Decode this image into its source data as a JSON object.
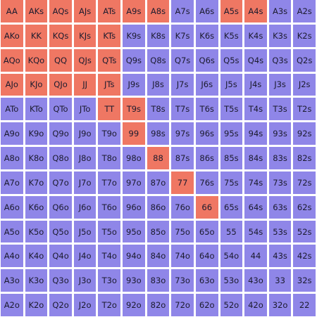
{
  "colors": {
    "unselected": "#8f86e8",
    "selected": "#ef7763",
    "text": "#1b1b2e"
  },
  "ranks": [
    "A",
    "K",
    "Q",
    "J",
    "T",
    "9",
    "8",
    "7",
    "6",
    "5",
    "4",
    "3",
    "2"
  ],
  "grid": [
    [
      "AA",
      "AKs",
      "AQs",
      "AJs",
      "ATs",
      "A9s",
      "A8s",
      "A7s",
      "A6s",
      "A5s",
      "A4s",
      "A3s",
      "A2s"
    ],
    [
      "AKo",
      "KK",
      "KQs",
      "KJs",
      "KTs",
      "K9s",
      "K8s",
      "K7s",
      "K6s",
      "K5s",
      "K4s",
      "K3s",
      "K2s"
    ],
    [
      "AQo",
      "KQo",
      "QQ",
      "QJs",
      "QTs",
      "Q9s",
      "Q8s",
      "Q7s",
      "Q6s",
      "Q5s",
      "Q4s",
      "Q3s",
      "Q2s"
    ],
    [
      "AJo",
      "KJo",
      "QJo",
      "JJ",
      "JTs",
      "J9s",
      "J8s",
      "J7s",
      "J6s",
      "J5s",
      "J4s",
      "J3s",
      "J2s"
    ],
    [
      "ATo",
      "KTo",
      "QTo",
      "JTo",
      "TT",
      "T9s",
      "T8s",
      "T7s",
      "T6s",
      "T5s",
      "T4s",
      "T3s",
      "T2s"
    ],
    [
      "A9o",
      "K9o",
      "Q9o",
      "J9o",
      "T9o",
      "99",
      "98s",
      "97s",
      "96s",
      "95s",
      "94s",
      "93s",
      "92s"
    ],
    [
      "A8o",
      "K8o",
      "Q8o",
      "J8o",
      "T8o",
      "98o",
      "88",
      "87s",
      "86s",
      "85s",
      "84s",
      "83s",
      "82s"
    ],
    [
      "A7o",
      "K7o",
      "Q7o",
      "J7o",
      "T7o",
      "97o",
      "87o",
      "77",
      "76s",
      "75s",
      "74s",
      "73s",
      "72s"
    ],
    [
      "A6o",
      "K6o",
      "Q6o",
      "J6o",
      "T6o",
      "96o",
      "86o",
      "76o",
      "66",
      "65s",
      "64s",
      "63s",
      "62s"
    ],
    [
      "A5o",
      "K5o",
      "Q5o",
      "J5o",
      "T5o",
      "95o",
      "85o",
      "75o",
      "65o",
      "55",
      "54s",
      "53s",
      "52s"
    ],
    [
      "A4o",
      "K4o",
      "Q4o",
      "J4o",
      "T4o",
      "94o",
      "84o",
      "74o",
      "64o",
      "54o",
      "44",
      "43s",
      "42s"
    ],
    [
      "A3o",
      "K3o",
      "Q3o",
      "J3o",
      "T3o",
      "93o",
      "83o",
      "73o",
      "63o",
      "53o",
      "43o",
      "33",
      "32s"
    ],
    [
      "A2o",
      "K2o",
      "Q2o",
      "J2o",
      "T2o",
      "92o",
      "82o",
      "72o",
      "62o",
      "52o",
      "42o",
      "32o",
      "22"
    ]
  ],
  "selected_hands": [
    "AA",
    "AKs",
    "AQs",
    "AJs",
    "ATs",
    "A9s",
    "A8s",
    "A5s",
    "A4s",
    "AKo",
    "KK",
    "KQs",
    "KJs",
    "KTs",
    "AQo",
    "KQo",
    "QQ",
    "QJs",
    "QTs",
    "AJo",
    "KJo",
    "QJo",
    "JJ",
    "JTs",
    "TT",
    "T9s",
    "99",
    "88",
    "77",
    "66"
  ]
}
